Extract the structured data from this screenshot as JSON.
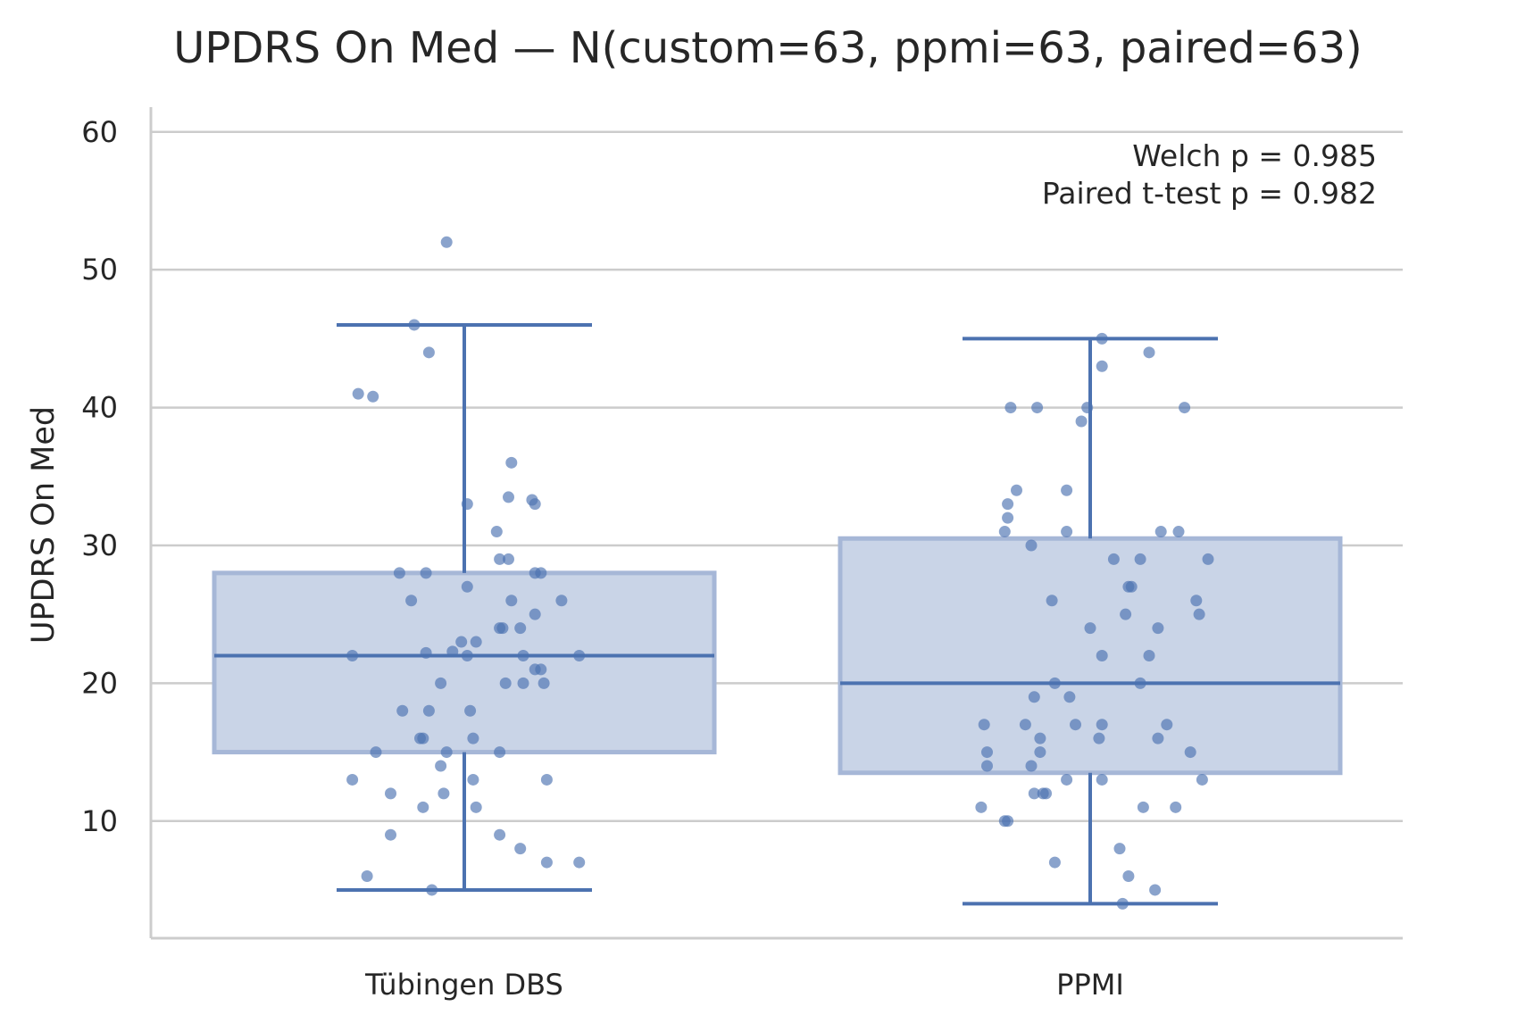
{
  "chart_data": {
    "type": "box",
    "title": "UPDRS On Med — N(custom=63, ppmi=63, paired=63)",
    "ylabel": "UPDRS On Med",
    "xlabel": "",
    "ylim": [
      1.5,
      61.8
    ],
    "yticks": [
      10,
      20,
      30,
      40,
      50,
      60
    ],
    "grid": "horizontal",
    "annotation": [
      "Welch p = 0.985",
      "Paired t-test p = 0.982"
    ],
    "colors": {
      "box": "#4c72b0",
      "box_fill": "#c9d4e7",
      "grid": "#cccccc",
      "axis": "#cccccc",
      "text": "#262626"
    },
    "categories": [
      "Tübingen DBS",
      "PPMI"
    ],
    "boxes": [
      {
        "name": "Tübingen DBS",
        "whisker_low": 5,
        "q1": 15,
        "median": 22,
        "q3": 28,
        "whisker_high": 46
      },
      {
        "name": "PPMI",
        "whisker_low": 4,
        "q1": 13.5,
        "median": 20,
        "q3": 30.5,
        "whisker_high": 45
      }
    ],
    "points": [
      [
        [
          -0.06,
          52
        ],
        [
          -0.17,
          46
        ],
        [
          -0.12,
          44
        ],
        [
          -0.36,
          41
        ],
        [
          -0.31,
          40.8
        ],
        [
          0.16,
          36
        ],
        [
          0.15,
          33.5
        ],
        [
          0.23,
          33.3
        ],
        [
          0.24,
          33
        ],
        [
          0.01,
          33
        ],
        [
          0.11,
          31
        ],
        [
          0.12,
          29
        ],
        [
          0.15,
          29
        ],
        [
          -0.22,
          28
        ],
        [
          -0.13,
          28
        ],
        [
          0.24,
          28
        ],
        [
          0.26,
          28
        ],
        [
          0.01,
          27
        ],
        [
          -0.18,
          26
        ],
        [
          0.16,
          26
        ],
        [
          0.33,
          26
        ],
        [
          0.24,
          25
        ],
        [
          0.12,
          24
        ],
        [
          0.13,
          24
        ],
        [
          0.19,
          24
        ],
        [
          -0.38,
          22
        ],
        [
          -0.13,
          22.2
        ],
        [
          -0.04,
          22.3
        ],
        [
          -0.01,
          23
        ],
        [
          0.04,
          23
        ],
        [
          0.01,
          22
        ],
        [
          0.2,
          22
        ],
        [
          0.39,
          22
        ],
        [
          0.24,
          21
        ],
        [
          0.26,
          21
        ],
        [
          -0.08,
          20
        ],
        [
          0.14,
          20
        ],
        [
          0.2,
          20
        ],
        [
          0.27,
          20
        ],
        [
          -0.21,
          18
        ],
        [
          -0.12,
          18
        ],
        [
          0.02,
          18
        ],
        [
          -0.15,
          16
        ],
        [
          -0.14,
          16
        ],
        [
          0.03,
          16
        ],
        [
          -0.3,
          15
        ],
        [
          -0.06,
          15
        ],
        [
          0.12,
          15
        ],
        [
          -0.08,
          14
        ],
        [
          -0.38,
          13
        ],
        [
          0.03,
          13
        ],
        [
          0.28,
          13
        ],
        [
          -0.25,
          12
        ],
        [
          -0.07,
          12
        ],
        [
          -0.14,
          11
        ],
        [
          0.04,
          11
        ],
        [
          -0.25,
          9
        ],
        [
          0.12,
          9
        ],
        [
          0.19,
          8
        ],
        [
          -0.33,
          6
        ],
        [
          0.28,
          7
        ],
        [
          0.39,
          7
        ],
        [
          -0.11,
          5
        ]
      ],
      [
        [
          0.04,
          45
        ],
        [
          0.2,
          44
        ],
        [
          0.04,
          43
        ],
        [
          -0.27,
          40
        ],
        [
          -0.18,
          40
        ],
        [
          -0.01,
          40
        ],
        [
          0.32,
          40
        ],
        [
          -0.03,
          39
        ],
        [
          -0.25,
          34
        ],
        [
          -0.08,
          34
        ],
        [
          -0.28,
          33
        ],
        [
          -0.28,
          32
        ],
        [
          -0.29,
          31
        ],
        [
          -0.08,
          31
        ],
        [
          0.24,
          31
        ],
        [
          0.3,
          31
        ],
        [
          -0.2,
          30
        ],
        [
          0.17,
          29
        ],
        [
          0.08,
          29
        ],
        [
          0.4,
          29
        ],
        [
          0.14,
          27
        ],
        [
          0.13,
          27
        ],
        [
          -0.13,
          26
        ],
        [
          0.36,
          26
        ],
        [
          0.12,
          25
        ],
        [
          0.37,
          25
        ],
        [
          0.0,
          24
        ],
        [
          0.23,
          24
        ],
        [
          0.04,
          22
        ],
        [
          0.2,
          22
        ],
        [
          -0.12,
          20
        ],
        [
          0.17,
          20
        ],
        [
          -0.19,
          19
        ],
        [
          -0.07,
          19
        ],
        [
          -0.36,
          17
        ],
        [
          -0.22,
          17
        ],
        [
          -0.05,
          17
        ],
        [
          0.04,
          17
        ],
        [
          0.26,
          17
        ],
        [
          -0.17,
          16
        ],
        [
          0.03,
          16
        ],
        [
          0.23,
          16
        ],
        [
          -0.35,
          15
        ],
        [
          -0.17,
          15
        ],
        [
          0.34,
          15
        ],
        [
          -0.35,
          14
        ],
        [
          -0.2,
          14
        ],
        [
          -0.08,
          13
        ],
        [
          0.04,
          13
        ],
        [
          0.38,
          13
        ],
        [
          -0.19,
          12
        ],
        [
          -0.16,
          12
        ],
        [
          -0.15,
          12
        ],
        [
          -0.37,
          11
        ],
        [
          0.18,
          11
        ],
        [
          0.29,
          11
        ],
        [
          -0.29,
          10
        ],
        [
          -0.28,
          10
        ],
        [
          -0.12,
          7
        ],
        [
          0.1,
          8
        ],
        [
          0.13,
          6
        ],
        [
          0.22,
          5
        ],
        [
          0.11,
          4
        ]
      ]
    ]
  }
}
